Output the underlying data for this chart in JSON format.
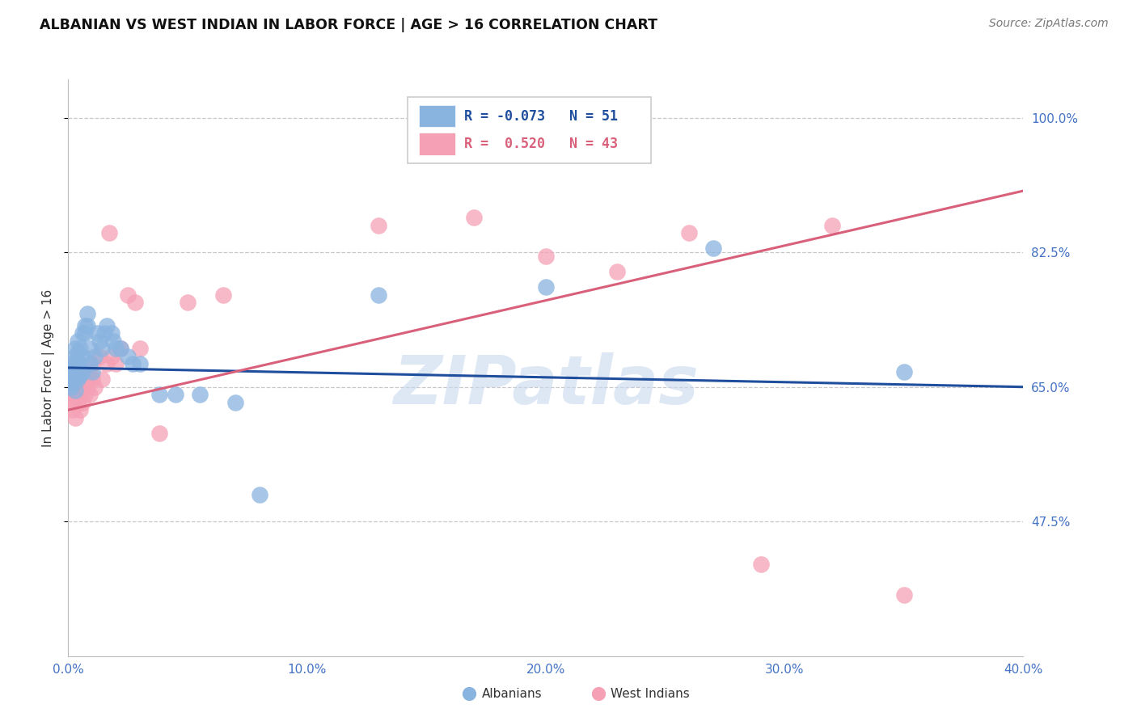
{
  "title": "ALBANIAN VS WEST INDIAN IN LABOR FORCE | AGE > 16 CORRELATION CHART",
  "source": "Source: ZipAtlas.com",
  "ylabel": "In Labor Force | Age > 16",
  "xlim": [
    0.0,
    0.4
  ],
  "ylim": [
    0.3,
    1.05
  ],
  "xticks": [
    0.0,
    0.1,
    0.2,
    0.3,
    0.4
  ],
  "xticklabels": [
    "0.0%",
    "10.0%",
    "20.0%",
    "30.0%",
    "40.0%"
  ],
  "ytick_positions": [
    1.0,
    0.825,
    0.65,
    0.475
  ],
  "ytick_labels": [
    "100.0%",
    "82.5%",
    "65.0%",
    "47.5%"
  ],
  "label_color": "#4472c4",
  "grid_color": "#c8c8c8",
  "background_color": "#ffffff",
  "albanian_color": "#8ab4e0",
  "west_indian_color": "#f5a0b5",
  "albanian_line_color": "#1f4e9c",
  "west_indian_line_color": "#d9607a",
  "watermark_text": "ZIPatlas",
  "watermark_color": "#c8d8ee",
  "legend_R_albanian": "-0.073",
  "legend_N_albanian": "51",
  "legend_R_west_indian": "0.520",
  "legend_N_west_indian": "43",
  "albanian_x": [
    0.001,
    0.001,
    0.001,
    0.002,
    0.002,
    0.002,
    0.003,
    0.003,
    0.003,
    0.003,
    0.003,
    0.003,
    0.004,
    0.004,
    0.004,
    0.004,
    0.005,
    0.005,
    0.005,
    0.006,
    0.006,
    0.006,
    0.007,
    0.007,
    0.008,
    0.008,
    0.009,
    0.009,
    0.01,
    0.011,
    0.012,
    0.013,
    0.014,
    0.015,
    0.016,
    0.018,
    0.019,
    0.02,
    0.022,
    0.025,
    0.027,
    0.03,
    0.038,
    0.045,
    0.055,
    0.07,
    0.08,
    0.13,
    0.2,
    0.27,
    0.35
  ],
  "albanian_y": [
    0.66,
    0.65,
    0.68,
    0.665,
    0.675,
    0.655,
    0.67,
    0.68,
    0.69,
    0.66,
    0.645,
    0.7,
    0.66,
    0.68,
    0.695,
    0.71,
    0.665,
    0.68,
    0.7,
    0.67,
    0.69,
    0.72,
    0.73,
    0.72,
    0.73,
    0.745,
    0.68,
    0.7,
    0.67,
    0.69,
    0.72,
    0.71,
    0.7,
    0.72,
    0.73,
    0.72,
    0.71,
    0.7,
    0.7,
    0.69,
    0.68,
    0.68,
    0.64,
    0.64,
    0.64,
    0.63,
    0.51,
    0.77,
    0.78,
    0.83,
    0.67
  ],
  "west_indian_x": [
    0.001,
    0.001,
    0.002,
    0.002,
    0.003,
    0.003,
    0.003,
    0.004,
    0.004,
    0.005,
    0.005,
    0.006,
    0.006,
    0.007,
    0.007,
    0.008,
    0.008,
    0.009,
    0.009,
    0.01,
    0.01,
    0.011,
    0.013,
    0.014,
    0.016,
    0.017,
    0.018,
    0.02,
    0.022,
    0.025,
    0.028,
    0.03,
    0.038,
    0.05,
    0.065,
    0.13,
    0.17,
    0.2,
    0.23,
    0.26,
    0.29,
    0.32,
    0.35
  ],
  "west_indian_y": [
    0.65,
    0.63,
    0.62,
    0.64,
    0.64,
    0.66,
    0.61,
    0.63,
    0.65,
    0.64,
    0.62,
    0.65,
    0.63,
    0.66,
    0.64,
    0.65,
    0.66,
    0.64,
    0.67,
    0.66,
    0.68,
    0.65,
    0.69,
    0.66,
    0.68,
    0.85,
    0.69,
    0.68,
    0.7,
    0.77,
    0.76,
    0.7,
    0.59,
    0.76,
    0.77,
    0.86,
    0.87,
    0.82,
    0.8,
    0.85,
    0.42,
    0.86,
    0.38
  ],
  "albanian_trend_x": [
    0.0,
    0.4
  ],
  "albanian_trend_y": [
    0.675,
    0.65
  ],
  "west_indian_trend_x": [
    0.0,
    0.4
  ],
  "west_indian_trend_y": [
    0.62,
    0.905
  ]
}
